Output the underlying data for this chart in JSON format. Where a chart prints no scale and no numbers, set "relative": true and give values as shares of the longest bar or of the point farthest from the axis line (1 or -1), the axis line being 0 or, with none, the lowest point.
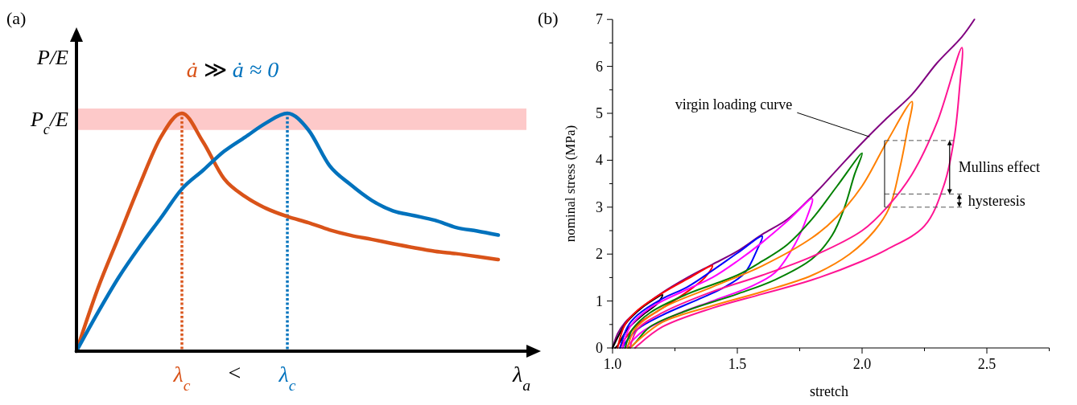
{
  "chart_data": [
    {
      "type": "line",
      "title": "(a)",
      "xlabel": "λ$_{a}$",
      "ylabel": "P/E",
      "relative": true,
      "categories": [
        null,
        null,
        null,
        null,
        null,
        "λ$_{c}$",
        null,
        null,
        null,
        null,
        "λ$_{c}$",
        null,
        null,
        null,
        null,
        null,
        null,
        null,
        null,
        null,
        null
      ],
      "series": [
        {
          "color": "#d95319",
          "values": [
            0,
            0.26,
            0.48,
            0.7,
            0.9,
            1,
            0.88,
            0.725,
            0.65,
            0.6,
            0.566,
            0.54,
            0.51,
            0.487,
            0.47,
            0.452,
            0.435,
            0.42,
            0.41,
            0.398,
            0.385
          ]
        },
        {
          "color": "#0072bd",
          "values": [
            0,
            0.16,
            0.31,
            0.44,
            0.56,
            0.682,
            0.76,
            0.84,
            0.9,
            0.96,
            1,
            0.93,
            0.78,
            0.7,
            0.634,
            0.59,
            0.57,
            0.55,
            0.52,
            0.505,
            0.488
          ]
        },
        {
          "type": "bar",
          "color": "#d95319",
          "line_style": "dotted",
          "values": [
            null,
            null,
            null,
            null,
            null,
            1,
            null,
            null,
            null,
            null,
            null,
            null,
            null,
            null,
            null,
            null,
            null,
            null,
            null,
            null,
            null
          ]
        },
        {
          "type": "bar",
          "color": "#0072bd",
          "line_style": "dotted",
          "values": [
            null,
            null,
            null,
            null,
            null,
            null,
            null,
            null,
            null,
            null,
            1,
            null,
            null,
            null,
            null,
            null,
            null,
            null,
            null,
            null,
            null
          ]
        }
      ],
      "bands": [
        {
          "axis": "y",
          "from": 0.93,
          "to": 1.02,
          "label": "P$_{c}$/E",
          "color": "#fdc9c9"
        }
      ],
      "annotations": [
        "ȧ",
        "≫",
        "ȧ ≈ 0",
        "<"
      ]
    },
    {
      "type": "line",
      "title": "(b)",
      "xlabel": "stretch",
      "ylabel": "nominal stress (MPa)",
      "xlim": [
        1,
        2.75
      ],
      "ylim": [
        0,
        7
      ],
      "xticks": [
        {
          "value": 1,
          "label": "1.0"
        },
        {
          "value": 1.25,
          "label": null
        },
        1.5,
        {
          "value": 1.75,
          "label": null
        },
        {
          "value": 2,
          "label": "2.0"
        },
        {
          "value": 2.25,
          "label": null
        },
        2.5,
        {
          "value": 2.75,
          "label": null
        }
      ],
      "yticks": [
        0,
        {
          "value": 0.5,
          "label": null
        },
        1,
        {
          "value": 1.5,
          "label": null
        },
        2,
        {
          "value": 2.5,
          "label": null
        },
        3,
        {
          "value": 3.5,
          "label": null
        },
        4,
        {
          "value": 4.5,
          "label": null
        },
        5,
        {
          "value": 5.5,
          "label": null
        },
        6,
        {
          "value": 6.5,
          "label": null
        },
        7
      ],
      "series": [
        {
          "color": "#800080",
          "x": [
            1,
            1.02,
            1.05,
            1.1,
            1.2,
            1.3,
            1.4,
            1.5,
            1.6,
            1.7,
            1.8,
            1.9,
            2,
            2.1,
            2.2,
            2.3,
            2.4,
            2.45
          ],
          "values": [
            0,
            0.3,
            0.54,
            0.79,
            1.18,
            1.5,
            1.78,
            2.06,
            2.42,
            2.74,
            3.23,
            3.8,
            4.37,
            4.9,
            5.4,
            6.07,
            6.63,
            7
          ]
        },
        {
          "color": "#000000",
          "x": [
            1,
            1.05,
            1.1,
            1.15,
            1.2,
            1.18,
            1.12,
            1.06,
            1.02,
            1.01
          ],
          "values": [
            0,
            0.5,
            0.78,
            0.98,
            1.13,
            0.95,
            0.7,
            0.4,
            0.05,
            0
          ]
        },
        {
          "color": "#ff0000",
          "x": [
            1.02,
            1.05,
            1.1,
            1.2,
            1.3,
            1.4,
            1.37,
            1.3,
            1.2,
            1.1,
            1.05,
            1.03
          ],
          "values": [
            0,
            0.5,
            0.8,
            1.17,
            1.47,
            1.75,
            1.5,
            1.2,
            0.85,
            0.5,
            0.2,
            0
          ]
        },
        {
          "color": "#0000ff",
          "x": [
            1.03,
            1.06,
            1.1,
            1.2,
            1.3,
            1.4,
            1.5,
            1.6,
            1.58,
            1.53,
            1.45,
            1.35,
            1.2,
            1.1,
            1.05,
            1.04
          ],
          "values": [
            0,
            0.45,
            0.7,
            1.05,
            1.3,
            1.65,
            2.02,
            2.38,
            2.1,
            1.6,
            1.3,
            1.05,
            0.7,
            0.4,
            0.1,
            0
          ]
        },
        {
          "color": "#ff00ff",
          "x": [
            1.04,
            1.07,
            1.15,
            1.3,
            1.4,
            1.5,
            1.6,
            1.7,
            1.8,
            1.78,
            1.73,
            1.65,
            1.55,
            1.4,
            1.25,
            1.12,
            1.06,
            1.05
          ],
          "values": [
            0,
            0.45,
            0.85,
            1.25,
            1.5,
            1.85,
            2.25,
            2.7,
            3.18,
            2.8,
            2.2,
            1.6,
            1.3,
            1,
            0.7,
            0.35,
            0.05,
            0
          ]
        },
        {
          "color": "#008000",
          "x": [
            1.05,
            1.08,
            1.15,
            1.3,
            1.5,
            1.6,
            1.7,
            1.8,
            1.9,
            2,
            1.97,
            1.93,
            1.88,
            1.8,
            1.65,
            1.5,
            1.3,
            1.15,
            1.08,
            1.06
          ],
          "values": [
            0,
            0.4,
            0.75,
            1.15,
            1.55,
            1.85,
            2.2,
            2.75,
            3.45,
            4.15,
            3.7,
            3,
            2.4,
            1.9,
            1.45,
            1.15,
            0.8,
            0.45,
            0.05,
            0
          ]
        },
        {
          "color": "#ff8000",
          "x": [
            1.06,
            1.09,
            1.2,
            1.4,
            1.6,
            1.8,
            1.9,
            2,
            2.1,
            2.2,
            2.18,
            2.15,
            2.11,
            2.05,
            1.95,
            1.8,
            1.6,
            1.4,
            1.2,
            1.1,
            1.07
          ],
          "values": [
            0,
            0.4,
            0.85,
            1.3,
            1.75,
            2.35,
            2.8,
            3.45,
            4.4,
            5.25,
            4.6,
            3.8,
            3,
            2.5,
            2,
            1.55,
            1.2,
            0.9,
            0.55,
            0.15,
            0
          ]
        },
        {
          "color": "#ff1493",
          "x": [
            1.07,
            1.1,
            1.2,
            1.4,
            1.6,
            1.8,
            2,
            2.1,
            2.2,
            2.3,
            2.4,
            2.39,
            2.37,
            2.33,
            2.25,
            2.1,
            2,
            1.8,
            1.6,
            1.4,
            1.2,
            1.1,
            1.09
          ],
          "values": [
            0,
            0.4,
            0.75,
            1.2,
            1.55,
            1.95,
            2.5,
            3,
            3.7,
            4.8,
            6.4,
            5.5,
            4.5,
            3.5,
            2.6,
            2.1,
            1.85,
            1.45,
            1.15,
            0.85,
            0.45,
            0.05,
            0
          ]
        }
      ],
      "ref_lines": [
        {
          "axis": "y",
          "value": 4.42,
          "color": "#555555",
          "line_style": "dashed"
        },
        {
          "axis": "y",
          "value": 3.28,
          "color": "#555555",
          "line_style": "dashed"
        },
        {
          "axis": "y",
          "value": 3,
          "color": "#555555",
          "line_style": "dashed"
        }
      ],
      "annotations": [
        {
          "text": "virgin loading curve",
          "x": 2.03,
          "y": 4.5
        },
        "Mullins effect",
        "hysteresis"
      ]
    }
  ]
}
